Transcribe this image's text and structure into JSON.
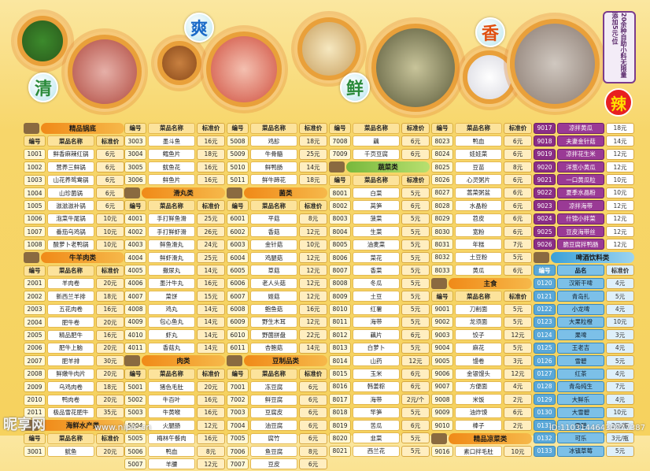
{
  "header": {
    "chars": [
      "清",
      "爽",
      "鲜",
      "香"
    ],
    "note": "20余种自助小料无限量添加5元/位",
    "spicy": "辣"
  },
  "columns": [
    {
      "blocks": [
        {
          "type": "section",
          "label": "精品锅底",
          "icon": "pot-icon"
        },
        {
          "type": "header",
          "code": "编号",
          "name": "菜品名称",
          "price": "标准价"
        },
        {
          "type": "rows",
          "rows": [
            [
              "1001",
              "鲜香麻辣红锅",
              "6元"
            ],
            [
              "1002",
              "营养三鲜锅",
              "6元"
            ],
            [
              "1003",
              "山花养鸳鸯锅",
              "6元"
            ],
            [
              "1004",
              "山珍菌锅",
              "6元"
            ],
            [
              "1005",
              "滋滋滋补锅",
              "6元"
            ],
            [
              "1006",
              "泡菜牛尾锅",
              "10元"
            ],
            [
              "1007",
              "番茄乌鸡锅",
              "10元"
            ],
            [
              "1008",
              "酸萝卜老鸭锅",
              "10元"
            ]
          ]
        },
        {
          "type": "section",
          "label": "牛羊肉类",
          "icon": "meat-icon"
        },
        {
          "type": "header",
          "code": "编号",
          "name": "菜品名称",
          "price": "标准价"
        },
        {
          "type": "rows",
          "rows": [
            [
              "2001",
              "羊肉卷",
              "20元"
            ],
            [
              "2002",
              "新西兰羊排",
              "18元"
            ],
            [
              "2003",
              "五花肉卷",
              "16元"
            ],
            [
              "2004",
              "肥牛卷",
              "20元"
            ],
            [
              "2005",
              "精品肥牛",
              "16元"
            ],
            [
              "2006",
              "肥牛上脑",
              "20元"
            ],
            [
              "2007",
              "肥羊排",
              "30元"
            ],
            [
              "2008",
              "鲜嫩牛肉片",
              "20元"
            ],
            [
              "2009",
              "乌鸡肉卷",
              "18元"
            ],
            [
              "2010",
              "鸭肉卷",
              "20元"
            ],
            [
              "2011",
              "极品雪花肥牛",
              "35元"
            ]
          ]
        },
        {
          "type": "section",
          "label": "海鲜水产类",
          "icon": "seafood-icon"
        },
        {
          "type": "header",
          "code": "编号",
          "name": "菜品名称",
          "price": "标准价"
        },
        {
          "type": "rows",
          "rows": [
            [
              "3001",
              "鱿鱼",
              "20元"
            ]
          ]
        }
      ]
    },
    {
      "blocks": [
        {
          "type": "header",
          "code": "编号",
          "name": "菜品名称",
          "price": "标准价"
        },
        {
          "type": "rows",
          "rows": [
            [
              "3003",
              "墨斗鱼",
              "16元"
            ],
            [
              "3004",
              "鳕鱼片",
              "18元"
            ],
            [
              "3005",
              "鱿鱼花",
              "16元"
            ],
            [
              "3006",
              "鲜鱼片",
              "16元"
            ]
          ]
        },
        {
          "type": "section",
          "label": "滑丸类",
          "icon": "ball-icon"
        },
        {
          "type": "header",
          "code": "编号",
          "name": "菜品名称",
          "price": "标准价"
        },
        {
          "type": "rows",
          "rows": [
            [
              "4001",
              "手打鲜鱼滑",
              "25元"
            ],
            [
              "4002",
              "手打鲜虾滑",
              "26元"
            ],
            [
              "4003",
              "鲜鱼滑丸",
              "24元"
            ],
            [
              "4004",
              "鲜虾滑丸",
              "25元"
            ],
            [
              "4005",
              "撒尿丸",
              "14元"
            ],
            [
              "4006",
              "墨汁牛丸",
              "16元"
            ],
            [
              "4007",
              "菜饼",
              "15元"
            ],
            [
              "4008",
              "鸡丸",
              "14元"
            ],
            [
              "4009",
              "包心鱼丸",
              "14元"
            ],
            [
              "4010",
              "虾丸",
              "14元"
            ],
            [
              "4011",
              "香菇丸",
              "14元"
            ]
          ]
        },
        {
          "type": "section",
          "label": "肉类",
          "icon": "meat-icon"
        },
        {
          "type": "header",
          "code": "编号",
          "name": "菜品名称",
          "price": "标准价"
        },
        {
          "type": "rows",
          "rows": [
            [
              "5001",
              "猪色毛肚",
              "20元"
            ],
            [
              "5002",
              "牛百叶",
              "16元"
            ],
            [
              "5003",
              "牛黄喉",
              "16元"
            ],
            [
              "5004",
              "火腿肠",
              "12元"
            ],
            [
              "5005",
              "梅林午餐肉",
              "16元"
            ],
            [
              "5006",
              "鸭血",
              "8元"
            ],
            [
              "5007",
              "羊腰",
              "12元"
            ]
          ]
        }
      ]
    },
    {
      "blocks": [
        {
          "type": "header",
          "code": "编号",
          "name": "菜品名称",
          "price": "标准价"
        },
        {
          "type": "rows",
          "rows": [
            [
              "5008",
              "鸡胗",
              "18元"
            ],
            [
              "5009",
              "牛骨髓",
              "25元"
            ],
            [
              "5010",
              "鲜鸭肠",
              "14元"
            ],
            [
              "5011",
              "鲜牛蹄花",
              "18元"
            ]
          ]
        },
        {
          "type": "section",
          "label": "菌类",
          "icon": "mushroom-icon"
        },
        {
          "type": "header",
          "code": "编号",
          "name": "菜品名称",
          "price": "标准价"
        },
        {
          "type": "rows",
          "rows": [
            [
              "6001",
              "平菇",
              "8元"
            ],
            [
              "6002",
              "香菇",
              "12元"
            ],
            [
              "6003",
              "金针菇",
              "10元"
            ],
            [
              "6004",
              "鸡腿菇",
              "12元"
            ],
            [
              "6005",
              "草菇",
              "12元"
            ],
            [
              "6006",
              "老人头菇",
              "12元"
            ],
            [
              "6007",
              "姬菇",
              "12元"
            ],
            [
              "6008",
              "鲍鱼菇",
              "16元"
            ],
            [
              "6009",
              "野生木耳",
              "12元"
            ],
            [
              "6010",
              "野菌拼盘",
              "22元"
            ],
            [
              "6011",
              "杏鲍菇",
              "14元"
            ]
          ]
        },
        {
          "type": "section",
          "label": "豆制品类",
          "icon": "tofu-icon"
        },
        {
          "type": "header",
          "code": "编号",
          "name": "菜品名称",
          "price": "标准价"
        },
        {
          "type": "rows",
          "rows": [
            [
              "7001",
              "冻豆腐",
              "6元"
            ],
            [
              "7002",
              "鲜豆腐",
              "6元"
            ],
            [
              "7003",
              "豆腐皮",
              "6元"
            ],
            [
              "7004",
              "油豆腐",
              "6元"
            ],
            [
              "7005",
              "腐竹",
              "6元"
            ],
            [
              "7006",
              "鱼豆腐",
              "8元"
            ],
            [
              "7007",
              "豆皮",
              "6元"
            ]
          ]
        }
      ]
    },
    {
      "blocks": [
        {
          "type": "header",
          "code": "编号",
          "name": "菜品名称",
          "price": "标准价"
        },
        {
          "type": "rows",
          "rows": [
            [
              "7008",
              "藕",
              "6元"
            ],
            [
              "7009",
              "千页豆腐",
              "6元"
            ]
          ]
        },
        {
          "type": "section",
          "label": "蔬菜类",
          "icon": "vegetable-icon",
          "color": "green"
        },
        {
          "type": "header",
          "code": "编号",
          "name": "菜品名称",
          "price": "标准价"
        },
        {
          "type": "rows",
          "rows": [
            [
              "8001",
              "白菜",
              "5元"
            ],
            [
              "8002",
              "莴笋",
              "6元"
            ],
            [
              "8003",
              "菠菜",
              "5元"
            ],
            [
              "8004",
              "生菜",
              "5元"
            ],
            [
              "8005",
              "油麦菜",
              "5元"
            ],
            [
              "8006",
              "菜花",
              "5元"
            ],
            [
              "8007",
              "香菜",
              "5元"
            ],
            [
              "8008",
              "冬瓜",
              "5元"
            ],
            [
              "8009",
              "土豆",
              "5元"
            ],
            [
              "8010",
              "红薯",
              "5元"
            ],
            [
              "8011",
              "海带",
              "5元"
            ],
            [
              "8012",
              "藕片",
              "6元"
            ],
            [
              "8013",
              "白萝卜",
              "5元"
            ],
            [
              "8014",
              "山药",
              "12元"
            ],
            [
              "8015",
              "玉米",
              "6元"
            ],
            [
              "8016",
              "韩姜粽",
              "6元"
            ],
            [
              "8017",
              "海带",
              "2元/个"
            ],
            [
              "8018",
              "竿笋",
              "5元"
            ],
            [
              "8019",
              "苦瓜",
              "6元"
            ],
            [
              "8020",
              "韭菜",
              "5元"
            ],
            [
              "8021",
              "西兰花",
              "5元"
            ]
          ]
        }
      ]
    },
    {
      "blocks": [
        {
          "type": "header",
          "code": "编号",
          "name": "菜品名称",
          "price": "标准价"
        },
        {
          "type": "rows",
          "rows": [
            [
              "8023",
              "鸭血",
              "6元"
            ],
            [
              "8024",
              "娃娃菜",
              "6元"
            ],
            [
              "8025",
              "豆苗",
              "8元"
            ],
            [
              "8026",
              "心灵粥片",
              "6元"
            ],
            [
              "8027",
              "蒿菜粥盆",
              "6元"
            ],
            [
              "8028",
              "水晶粉",
              "6元"
            ],
            [
              "8029",
              "苕皮",
              "6元"
            ],
            [
              "8030",
              "宽粉",
              "6元"
            ],
            [
              "8031",
              "年糕",
              "7元"
            ],
            [
              "8032",
              "土豆粉",
              "5元"
            ],
            [
              "8033",
              "黄瓜",
              "6元"
            ]
          ]
        },
        {
          "type": "section",
          "label": "主食",
          "icon": "rice-icon"
        },
        {
          "type": "header",
          "code": "编号",
          "name": "菜品名称",
          "price": "标准价"
        },
        {
          "type": "rows",
          "rows": [
            [
              "9001",
              "刀削面",
              "5元"
            ],
            [
              "9002",
              "龙须面",
              "5元"
            ],
            [
              "9003",
              "饺子",
              "12元"
            ],
            [
              "9004",
              "麻花",
              "5元"
            ],
            [
              "9005",
              "馒卷",
              "3元"
            ],
            [
              "9006",
              "金银馒头",
              "12元"
            ],
            [
              "9007",
              "方便面",
              "4元"
            ],
            [
              "9008",
              "米饭",
              "2元"
            ],
            [
              "9009",
              "油炸馍",
              "6元"
            ],
            [
              "9010",
              "棒子",
              "2元"
            ]
          ]
        },
        {
          "type": "section",
          "label": "精品凉菜类",
          "icon": "cold-dish-icon"
        },
        {
          "type": "rows",
          "rows": [
            [
              "9016",
              "素口拌毛肚",
              "10元"
            ]
          ]
        }
      ]
    },
    {
      "purple": true,
      "blocks": [
        {
          "type": "rows",
          "rows": [
            [
              "9017",
              "凉拌黄瓜",
              "18元"
            ],
            [
              "9018",
              "夫妻金针菇",
              "14元"
            ],
            [
              "9019",
              "凉拌花生米",
              "12元"
            ],
            [
              "9020",
              "洋葱小黄瓜",
              "12元"
            ],
            [
              "9021",
              "一口黄瓜粒",
              "10元"
            ],
            [
              "9022",
              "夏季水晶粉",
              "10元"
            ],
            [
              "9023",
              "凉拌海带",
              "12元"
            ],
            [
              "9024",
              "什锦小拌菜",
              "12元"
            ],
            [
              "9025",
              "豆皮海带丝",
              "12元"
            ],
            [
              "9026",
              "脆豆腐拌鸭肠",
              "12元"
            ]
          ]
        },
        {
          "type": "section",
          "label": "啤酒饮料类",
          "icon": "drink-icon",
          "color": "blue"
        },
        {
          "type": "header",
          "code": "编号",
          "name": "品名",
          "price": "标准价",
          "blue": true
        },
        {
          "type": "rows",
          "blue": true,
          "rows": [
            [
              "0120",
              "汉斯干啤",
              "4元"
            ],
            [
              "0121",
              "青岛扎",
              "5元"
            ],
            [
              "0122",
              "小龙啤",
              "4元"
            ],
            [
              "0123",
              "大果粒橙",
              "10元"
            ],
            [
              "0124",
              "果啤",
              "3元"
            ],
            [
              "0125",
              "王老吉",
              "4元"
            ],
            [
              "0126",
              "雪碧",
              "5元"
            ],
            [
              "0127",
              "红茶",
              "4元"
            ],
            [
              "0128",
              "青岛纯生",
              "7元"
            ],
            [
              "0129",
              "大鲜乐",
              "4元"
            ],
            [
              "0130",
              "大雪碧",
              "10元"
            ],
            [
              "0131",
              "雪碧",
              "3元/瓶"
            ],
            [
              "0132",
              "可乐",
              "3元/瓶"
            ],
            [
              "0133",
              "冰镇草莓",
              "5元"
            ]
          ]
        }
      ]
    }
  ],
  "watermark": {
    "logo": "昵享网",
    "url": "www.nipic.cn",
    "id": "ID:11031446430077387"
  }
}
